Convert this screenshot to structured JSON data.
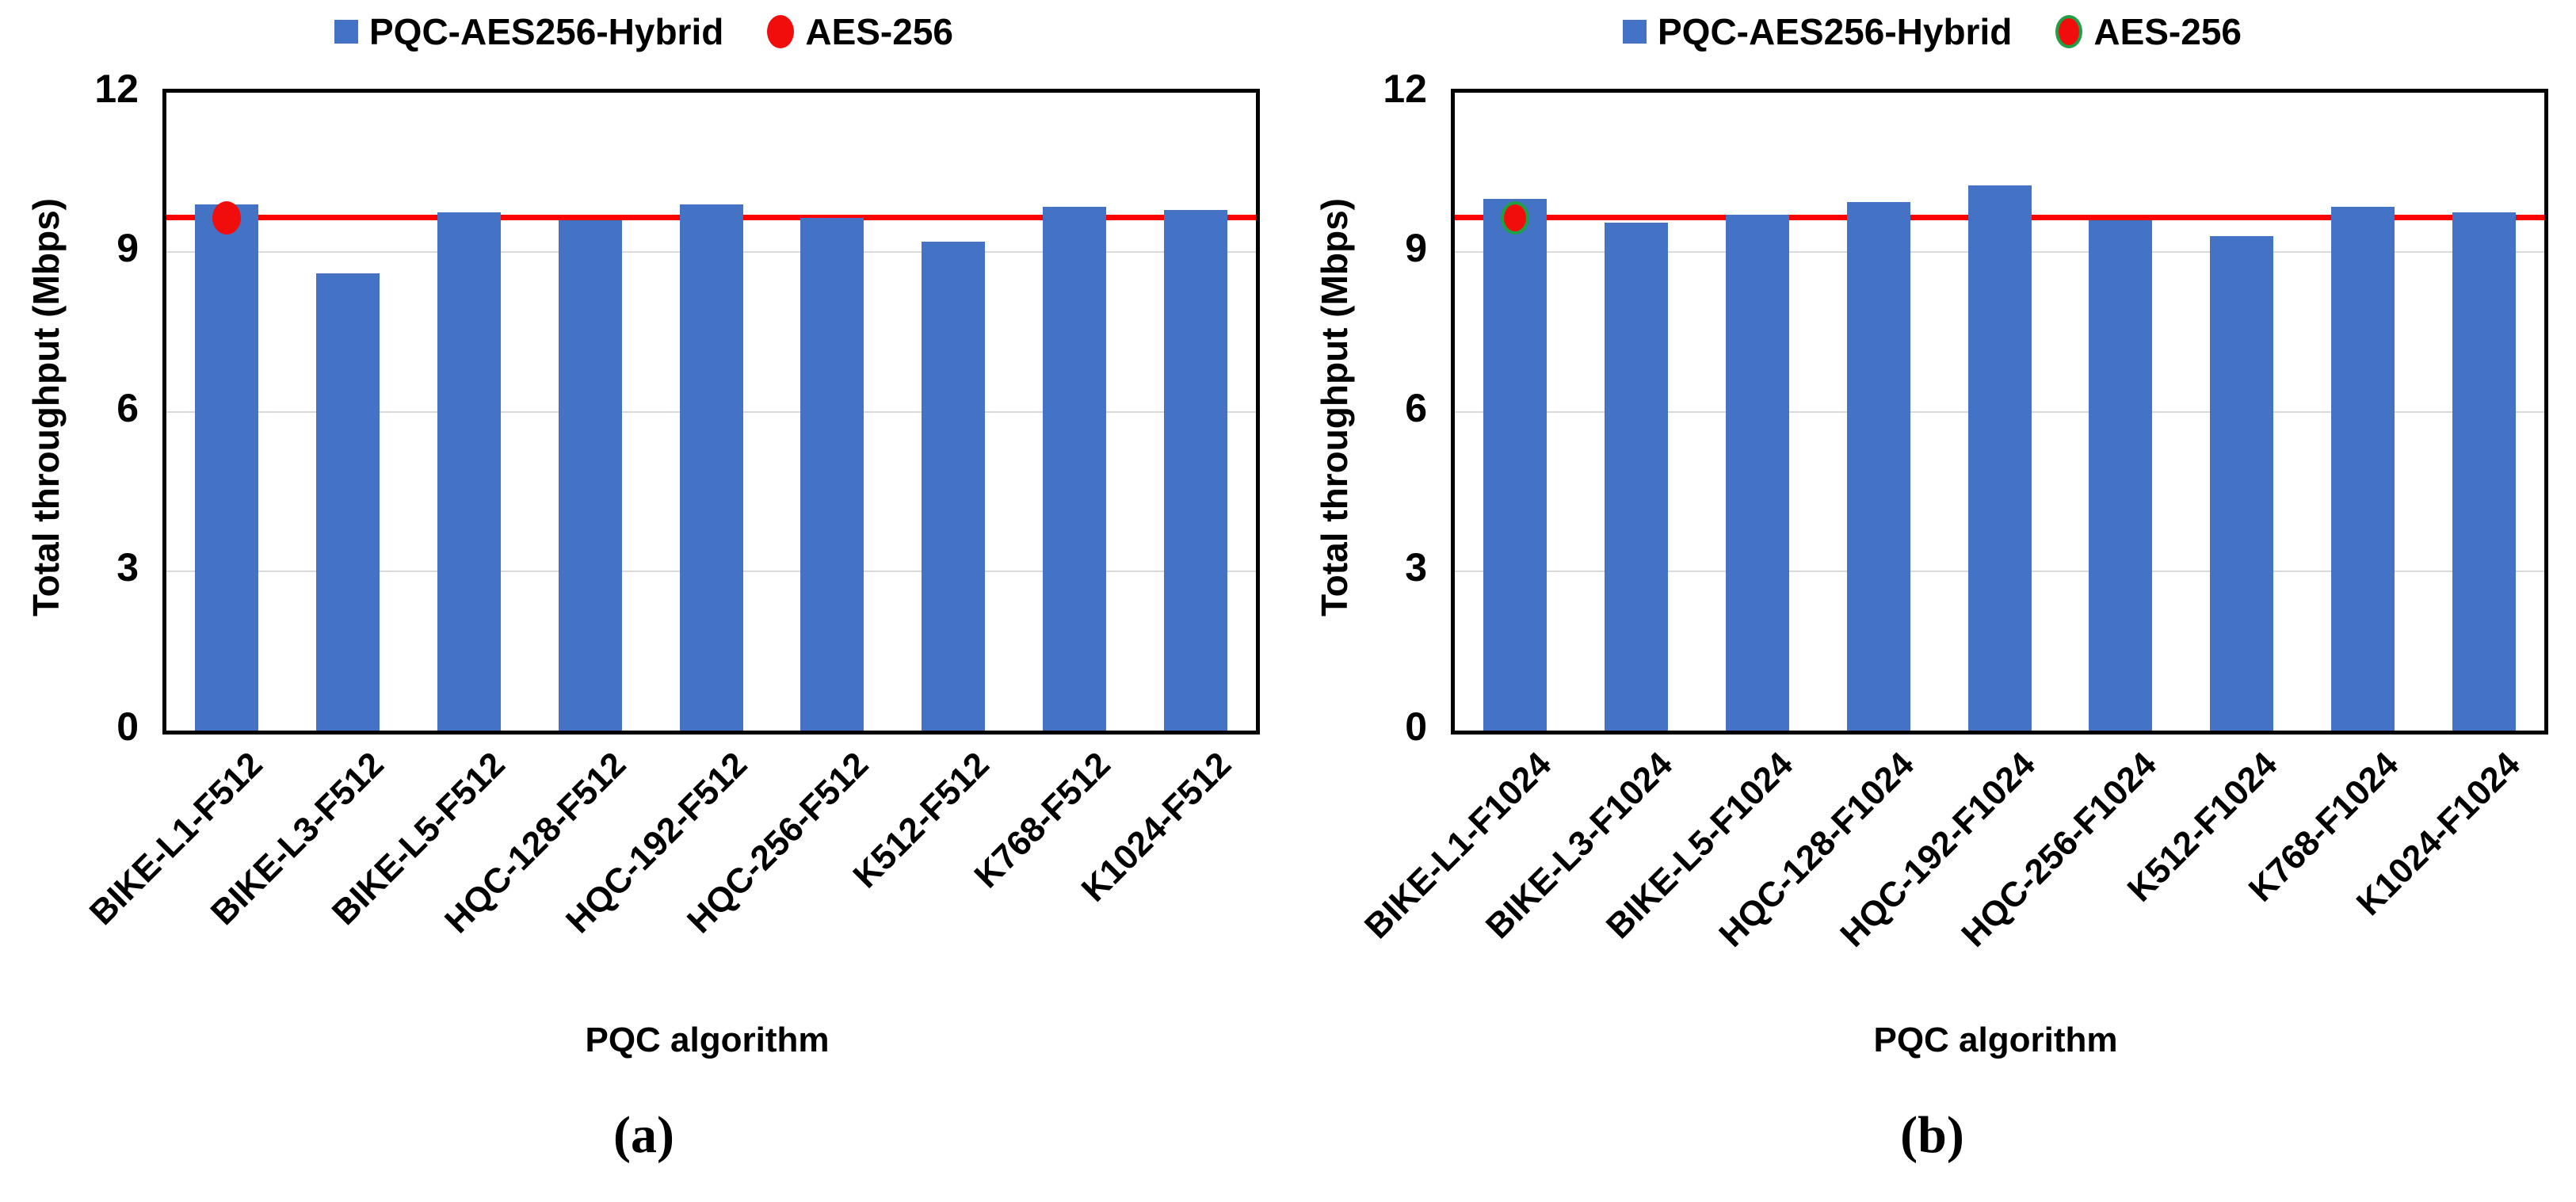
{
  "chart_data": [
    {
      "type": "bar",
      "panel": "a",
      "caption": "(a)",
      "categories": [
        "BIKE-L1-F512",
        "BIKE-L3-F512",
        "BIKE-L5-F512",
        "HQC-128-F512",
        "HQC-192-F512",
        "HQC-256-F512",
        "K512-F512",
        "K768-F512",
        "K1024-F512"
      ],
      "series": [
        {
          "name": "PQC-AES256-Hybrid",
          "values": [
            9.9,
            8.6,
            9.75,
            9.6,
            9.9,
            9.65,
            9.2,
            9.85,
            9.8
          ]
        }
      ],
      "reference_line": {
        "name": "AES-256",
        "value": 9.65
      },
      "marker": {
        "category": "BIKE-L1-F512",
        "value": 9.65
      },
      "xlabel": "PQC algorithm",
      "ylabel": "Total throughput (Mbps)",
      "ylim": [
        0,
        12
      ],
      "yticks": [
        0,
        3,
        6,
        9,
        12
      ],
      "gridlines": [
        3,
        6,
        9
      ],
      "legend_position": "top",
      "colors": {
        "bar": "#4472C4",
        "line": "#FF0000",
        "marker_fill": "#F20D0D",
        "marker_ring": null,
        "gridline": "#D9D9D9",
        "frame": "#000000"
      }
    },
    {
      "type": "bar",
      "panel": "b",
      "caption": "(b)",
      "categories": [
        "BIKE-L1-F1024",
        "BIKE-L3-F1024",
        "BIKE-L5-F1024",
        "HQC-128-F1024",
        "HQC-192-F1024",
        "HQC-256-F1024",
        "K512-F1024",
        "K768-F1024",
        "K1024-F1024"
      ],
      "series": [
        {
          "name": "PQC-AES256-Hybrid",
          "values": [
            10.0,
            9.55,
            9.7,
            9.95,
            10.25,
            9.6,
            9.3,
            9.85,
            9.75
          ]
        }
      ],
      "reference_line": {
        "name": "AES-256",
        "value": 9.65
      },
      "marker": {
        "category": "BIKE-L1-F1024",
        "value": 9.65
      },
      "xlabel": "PQC algorithm",
      "ylabel": "Total throughput (Mbps)",
      "ylim": [
        0,
        12
      ],
      "yticks": [
        0,
        3,
        6,
        9,
        12
      ],
      "gridlines": [
        3,
        6,
        9
      ],
      "legend_position": "top",
      "colors": {
        "bar": "#4472C4",
        "line": "#FF0000",
        "marker_fill": "#F20D0D",
        "marker_ring": "#1FA048",
        "gridline": "#D9D9D9",
        "frame": "#000000"
      }
    }
  ]
}
